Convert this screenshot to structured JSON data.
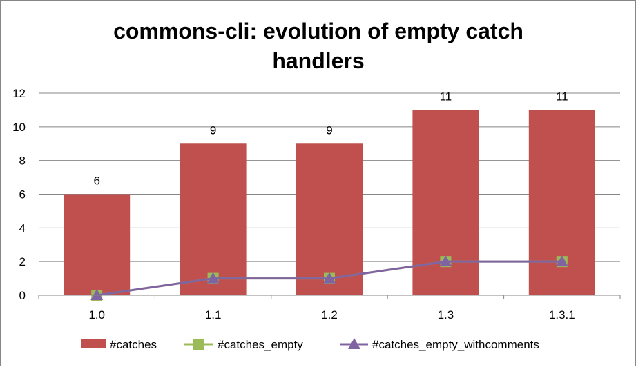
{
  "chart_data": {
    "type": "bar",
    "title": "commons-cli: evolution of empty catch handlers",
    "title_lines": [
      "commons-cli: evolution of empty catch",
      "handlers"
    ],
    "categories": [
      "1.0",
      "1.1",
      "1.2",
      "1.3",
      "1.3.1"
    ],
    "series": [
      {
        "name": "#catches",
        "kind": "bar",
        "color": "#C0504D",
        "values": [
          6,
          9,
          9,
          11,
          11
        ],
        "data_labels": [
          "6",
          "9",
          "9",
          "11",
          "11"
        ]
      },
      {
        "name": "#catches_empty",
        "kind": "line",
        "marker": "square",
        "color": "#9BBB59",
        "values": [
          0,
          1,
          1,
          2,
          2
        ]
      },
      {
        "name": "#catches_empty_withcomments",
        "kind": "line",
        "marker": "triangle",
        "color": "#8064A2",
        "values": [
          0,
          1,
          1,
          2,
          2
        ]
      }
    ],
    "ylim": [
      0,
      12
    ],
    "yticks": [
      "0",
      "2",
      "4",
      "6",
      "8",
      "10",
      "12"
    ],
    "xlabel": "",
    "ylabel": "",
    "grid": true,
    "legend": "bottom"
  }
}
